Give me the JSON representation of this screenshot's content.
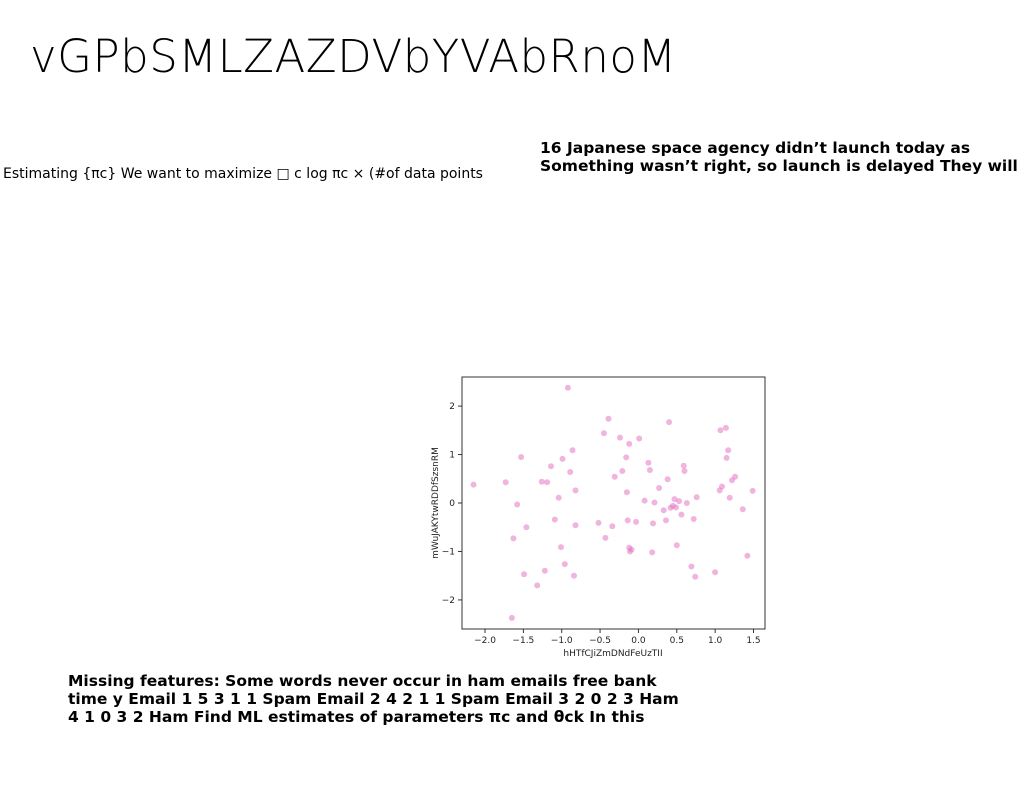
{
  "slide": {
    "title": "vGPbSMLZAZDVbYVAbRnoM",
    "body_text": "Estimating {πc} We want to maximize □ c log πc × (#of data points",
    "side_note_lines": [
      "16 Japanese space agency didn’t launch today as",
      "Something wasn’t right, so launch is delayed They will"
    ],
    "bottom_note_lines": [
      "Missing features: Some words never occur in ham emails free bank",
      "time y Email 1 5 3 1 1 Spam Email 2 4 2 1 1 Spam Email 3 2 0 2 3 Ham",
      "4 1 0 3 2 Ham Find ML estimates of parameters πc and θck In this"
    ]
  },
  "chart_data": {
    "type": "scatter",
    "title": "",
    "xlabel": "hHTfCJiZmDNdFeUzTII",
    "ylabel": "mWuJAKYtwRDDfSzsnRM",
    "xlim": [
      -2.3,
      1.65
    ],
    "ylim": [
      -2.6,
      2.6
    ],
    "xticks": [
      -2.0,
      -1.5,
      -1.0,
      -0.5,
      0.0,
      0.5,
      1.0,
      1.5
    ],
    "xtick_labels": [
      "−2.0",
      "−1.5",
      "−1.0",
      "−0.5",
      "0.0",
      "0.5",
      "1.0",
      "1.5"
    ],
    "yticks": [
      -2,
      -1,
      0,
      1,
      2
    ],
    "ytick_labels": [
      "−2",
      "−1",
      "0",
      "1",
      "2"
    ],
    "grid": false,
    "legend": "none",
    "point_color": "#e377c2",
    "series": [
      {
        "x": [
          -2.15,
          -1.73,
          -1.65,
          -1.63,
          -1.58,
          -1.53,
          -1.49,
          -1.46,
          -1.32,
          -1.26,
          -1.22,
          -1.19,
          -1.14,
          -1.09,
          -1.04,
          -1.01,
          -0.99,
          -0.96,
          -0.92,
          -0.89,
          -0.86,
          -0.84,
          -0.82,
          -0.82,
          -0.52,
          -0.45,
          -0.43,
          -0.39,
          -0.34,
          -0.31,
          -0.24,
          -0.21,
          -0.16,
          -0.15,
          -0.14,
          -0.12,
          -0.12,
          -0.11,
          -0.09,
          -0.03,
          0.01,
          0.08,
          0.13,
          0.15,
          0.18,
          0.19,
          0.21,
          0.27,
          0.33,
          0.36,
          0.38,
          0.4,
          0.42,
          0.45,
          0.47,
          0.49,
          0.5,
          0.53,
          0.56,
          0.59,
          0.6,
          0.63,
          0.69,
          0.72,
          0.74,
          0.76,
          1.0,
          1.06,
          1.07,
          1.09,
          1.14,
          1.15,
          1.17,
          1.19,
          1.22,
          1.26,
          1.36,
          1.42,
          1.49
        ],
        "y": [
          0.38,
          0.43,
          -2.37,
          -0.73,
          -0.03,
          0.95,
          -1.47,
          -0.5,
          -1.7,
          0.44,
          -1.4,
          0.43,
          0.76,
          -0.34,
          0.11,
          -0.91,
          0.91,
          -1.26,
          2.38,
          0.64,
          1.09,
          -1.5,
          -0.46,
          0.26,
          -0.41,
          1.44,
          -0.72,
          1.74,
          -0.48,
          0.54,
          1.35,
          0.66,
          0.94,
          0.22,
          -0.36,
          1.22,
          -0.92,
          -1.0,
          -0.96,
          -0.39,
          1.33,
          0.05,
          0.83,
          0.68,
          -1.02,
          -0.42,
          0.01,
          0.31,
          -0.15,
          -0.36,
          0.49,
          1.67,
          -0.1,
          -0.06,
          0.08,
          -0.09,
          -0.87,
          0.04,
          -0.24,
          0.77,
          0.66,
          0.0,
          -1.31,
          -0.33,
          -1.52,
          0.12,
          -1.43,
          0.26,
          1.5,
          0.34,
          1.55,
          0.93,
          1.09,
          0.11,
          0.47,
          0.54,
          -0.13,
          -1.09,
          0.25
        ]
      }
    ]
  }
}
